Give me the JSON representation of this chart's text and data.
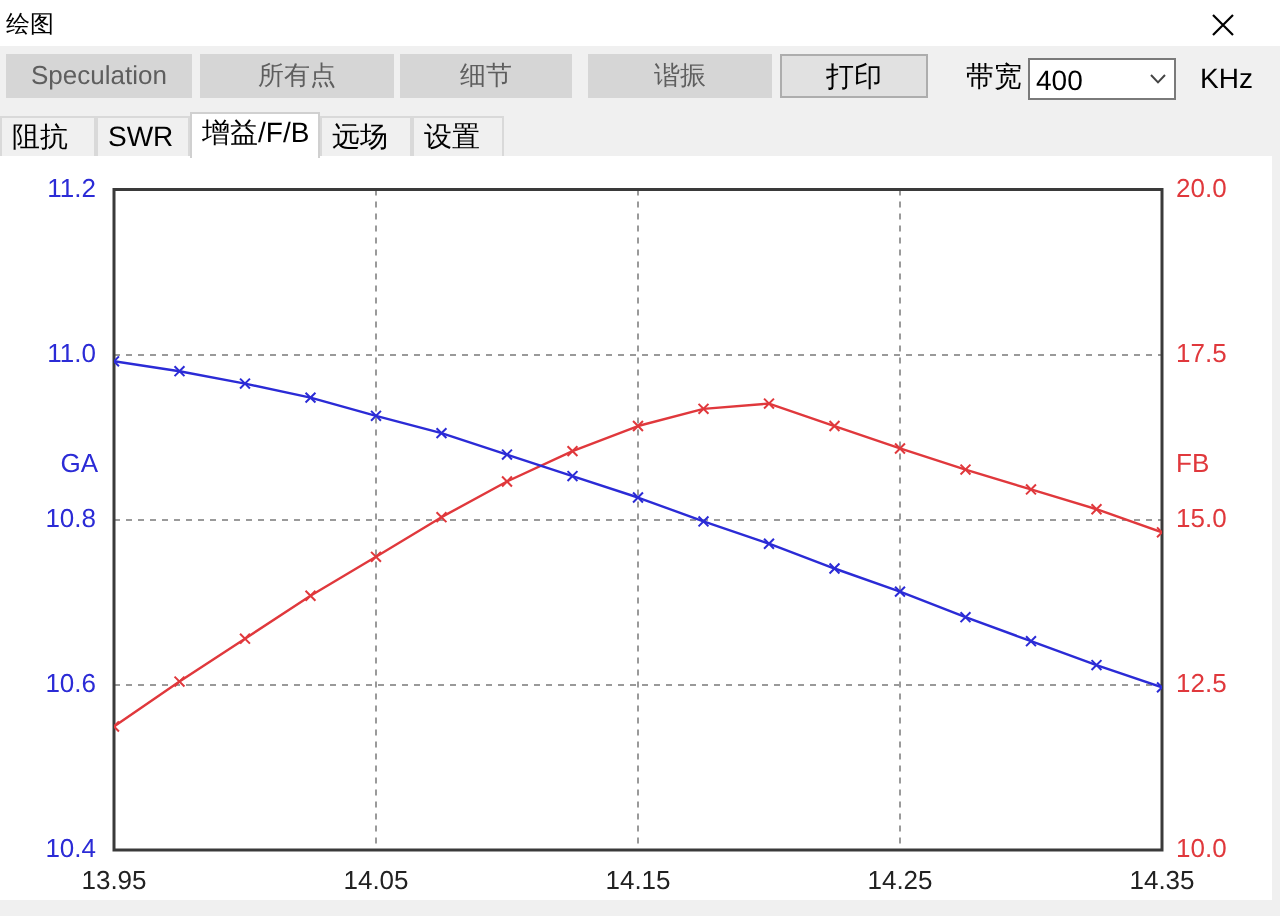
{
  "chart_data": {
    "type": "line",
    "title": "绘图",
    "ylabel": "GA",
    "y2label": "FB",
    "x": [
      13.95,
      13.975,
      14.0,
      14.025,
      14.05,
      14.075,
      14.1,
      14.125,
      14.15,
      14.175,
      14.2,
      14.225,
      14.25,
      14.275,
      14.3,
      14.325,
      14.35
    ],
    "series": [
      {
        "color": "#2b2bd6",
        "values": [
          10.992,
          10.98,
          10.965,
          10.948,
          10.926,
          10.905,
          10.879,
          10.853,
          10.827,
          10.798,
          10.771,
          10.741,
          10.713,
          10.682,
          10.653,
          10.624,
          10.597
        ]
      },
      {
        "color": "#e0383c",
        "axis": "y2",
        "values": [
          11.87,
          12.55,
          13.2,
          13.85,
          14.44,
          15.04,
          15.58,
          16.04,
          16.42,
          16.68,
          16.76,
          16.42,
          16.08,
          15.76,
          15.46,
          15.16,
          14.81
        ]
      }
    ],
    "xlim": [
      13.95,
      14.35
    ],
    "xticks": [
      13.95,
      14.05,
      14.15,
      14.25,
      14.35
    ],
    "ylim": [
      10.4,
      11.2
    ],
    "yticks": [
      10.4,
      10.6,
      10.8,
      {
        "value": 11,
        "label": "11.0"
      },
      11.2
    ],
    "y2lim": [
      10,
      20
    ],
    "y2ticks": [
      {
        "value": 10,
        "label": "10.0"
      },
      12.5,
      {
        "value": 15,
        "label": "15.0"
      },
      17.5,
      {
        "value": 20,
        "label": "20.0"
      }
    ],
    "grid": true,
    "marker": "cross",
    "line_style": "solid",
    "annotations": [
      "Speculation",
      "所有点",
      "细节",
      "谐振",
      "打印",
      "带宽",
      "400",
      "KHz",
      "阻抗",
      "SWR",
      "增益/F/B",
      "远场",
      "设置"
    ]
  }
}
